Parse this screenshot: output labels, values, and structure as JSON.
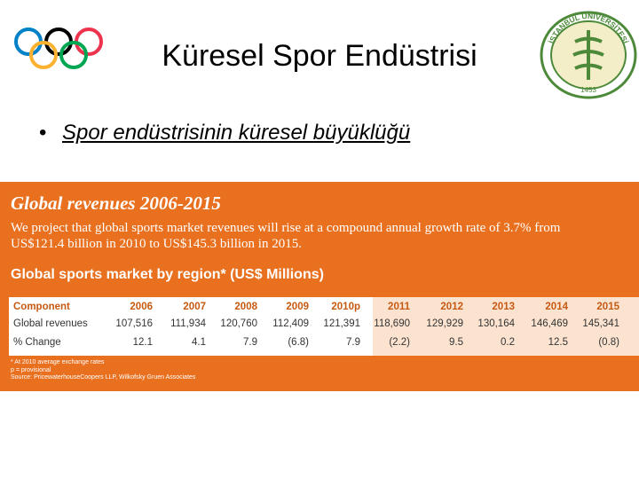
{
  "header": {
    "title": "Küresel Spor Endüstrisi",
    "bullet": "Spor endüstrisinin küresel büyüklüğü"
  },
  "seal": {
    "text": "İSTANBUL ÜNİVERSİTESİ",
    "year": "1453"
  },
  "panel": {
    "title": "Global revenues 2006-2015",
    "lines": [
      "We project that global sports market revenues will rise at a compound annual growth rate of 3.7% from",
      "US$121.4 billion in 2010 to US$145.3 billion in 2015."
    ],
    "subtitle": "Global sports market by region* (US$ Millions)",
    "table": {
      "header": [
        "Component",
        "2006",
        "2007",
        "2008",
        "2009",
        "2010p",
        "2011",
        "2012",
        "2013",
        "2014",
        "2015"
      ],
      "rows": [
        [
          "Global revenues",
          "107,516",
          "111,934",
          "120,760",
          "112,409",
          "121,391",
          "118,690",
          "129,929",
          "130,164",
          "146,469",
          "145,341"
        ],
        [
          "% Change",
          "12.1",
          "4.1",
          "7.9",
          "(6.8)",
          "7.9",
          "(2.2)",
          "9.5",
          "0.2",
          "12.5",
          "(0.8)"
        ]
      ]
    },
    "footnotes": [
      "* At 2010 average exchange rates",
      "p = provisional",
      "Source: PricewaterhouseCoopers LLP, Wilkofsky Gruen Associates"
    ]
  }
}
